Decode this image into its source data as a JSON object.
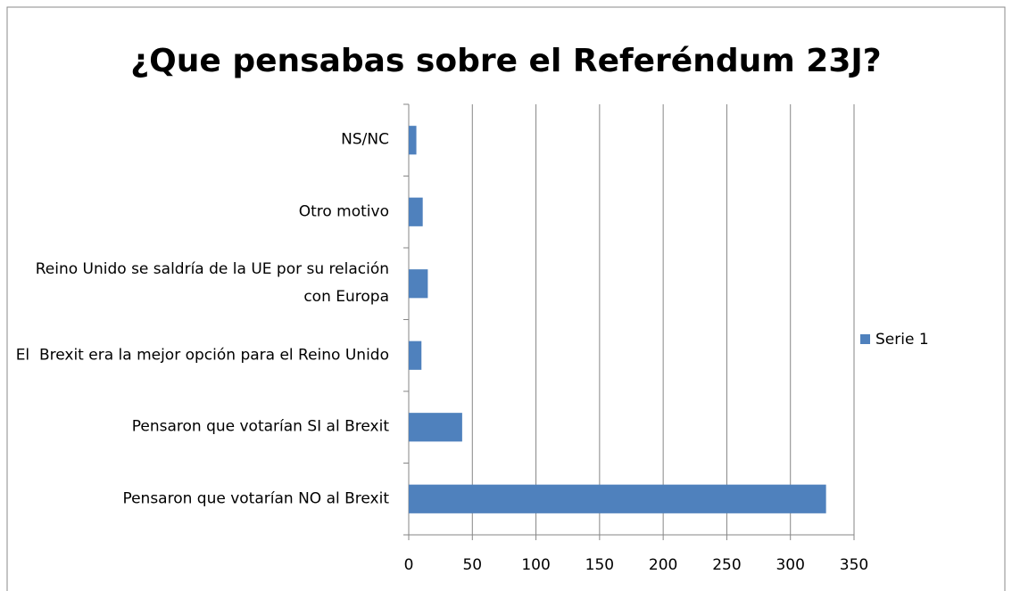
{
  "chart_data": {
    "type": "bar",
    "orientation": "horizontal",
    "title": "¿Que pensabas sobre el Referéndum 23J?",
    "categories": [
      "NS/NC",
      "Otro motivo",
      "Reino Unido se saldría de la UE por su relación con Europa",
      "El  Brexit era la mejor opción para el Reino Unido",
      "Pensaron que votarían SI al Brexit",
      "Pensaron que votarían NO al Brexit"
    ],
    "series": [
      {
        "name": "Serie 1",
        "color": "#4f81bd",
        "values": [
          6,
          11,
          15,
          10,
          42,
          328
        ]
      }
    ],
    "xlim": [
      0,
      350
    ],
    "xticks": [
      0,
      50,
      100,
      150,
      200,
      250,
      300,
      350
    ],
    "grid": true,
    "legend": "right"
  }
}
